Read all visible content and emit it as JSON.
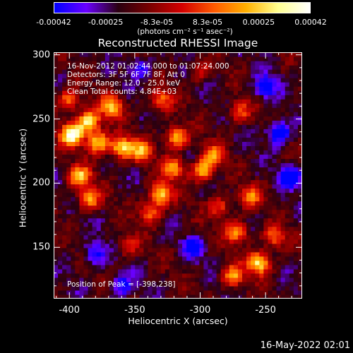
{
  "colorbar": {
    "ticks": [
      "-0.00042",
      "-0.00025",
      "-8.3e-05",
      "8.3e-05",
      "0.00025",
      "0.00042"
    ],
    "tick_values": [
      -0.00042,
      -0.00025,
      -8.3e-05,
      8.3e-05,
      0.00025,
      0.00042
    ],
    "units": "(photons cm⁻² s⁻¹ asec⁻²)",
    "colors": [
      "#0000ff",
      "#6a00ff",
      "#2a0010",
      "#7a0000",
      "#d40000",
      "#ff5a00",
      "#ffb000",
      "#ffff90",
      "#ffffff"
    ]
  },
  "info_lines": [
    "16-Nov-2012 01:02:44.000 to 01:07:24.000",
    "Detectors: 3F 5F 6F 7F 8F, Att 0",
    "Energy Range: 12.0 - 25.0 keV",
    "Clean    Total counts: 4.84E+03"
  ],
  "peak_label": "Position of Peak = [-398,238]",
  "footer_date": "16-May-2022 02:01",
  "chart_data": {
    "type": "heatmap",
    "title": "Reconstructed RHESSI Image",
    "xlabel": "Heliocentric X (arcsec)",
    "ylabel": "Heliocentric Y (arcsec)",
    "xlim": [
      -412,
      -222
    ],
    "ylim": [
      110,
      302
    ],
    "xticks": [
      -400,
      -350,
      -300,
      -250
    ],
    "xtick_labels": [
      "-400",
      "-350",
      "-300",
      "-250"
    ],
    "yticks": [
      150,
      200,
      250,
      300
    ],
    "ytick_labels": [
      "150",
      "200",
      "250",
      "300"
    ],
    "peak_position": [
      -398,
      238
    ],
    "bright_sources": [
      {
        "x": -398,
        "y": 238,
        "intensity": 1.0
      },
      {
        "x": -385,
        "y": 248,
        "intensity": 0.85
      },
      {
        "x": -368,
        "y": 260,
        "intensity": 0.7
      },
      {
        "x": -378,
        "y": 232,
        "intensity": 0.75
      },
      {
        "x": -360,
        "y": 228,
        "intensity": 0.8
      },
      {
        "x": -345,
        "y": 225,
        "intensity": 0.6
      },
      {
        "x": -392,
        "y": 205,
        "intensity": 0.7
      },
      {
        "x": -385,
        "y": 188,
        "intensity": 0.6
      },
      {
        "x": -400,
        "y": 265,
        "intensity": 0.55
      },
      {
        "x": -330,
        "y": 265,
        "intensity": 0.5
      },
      {
        "x": -318,
        "y": 236,
        "intensity": 0.7
      },
      {
        "x": -320,
        "y": 212,
        "intensity": 0.6
      },
      {
        "x": -330,
        "y": 192,
        "intensity": 0.75
      },
      {
        "x": -338,
        "y": 178,
        "intensity": 0.55
      },
      {
        "x": -298,
        "y": 210,
        "intensity": 0.7
      },
      {
        "x": -290,
        "y": 222,
        "intensity": 0.55
      },
      {
        "x": -285,
        "y": 182,
        "intensity": 0.45
      },
      {
        "x": -270,
        "y": 256,
        "intensity": 0.45
      },
      {
        "x": -272,
        "y": 162,
        "intensity": 0.65
      },
      {
        "x": -262,
        "y": 190,
        "intensity": 0.5
      },
      {
        "x": -255,
        "y": 138,
        "intensity": 0.85
      },
      {
        "x": -275,
        "y": 128,
        "intensity": 0.6
      },
      {
        "x": -243,
        "y": 158,
        "intensity": 0.5
      },
      {
        "x": -355,
        "y": 152,
        "intensity": 0.35
      },
      {
        "x": -300,
        "y": 288,
        "intensity": 0.3
      }
    ],
    "dim_regions": [
      {
        "x": -240,
        "y": 240,
        "intensity": -0.6
      },
      {
        "x": -250,
        "y": 275,
        "intensity": -0.5
      },
      {
        "x": -380,
        "y": 145,
        "intensity": -0.45
      },
      {
        "x": -360,
        "y": 120,
        "intensity": -0.4
      },
      {
        "x": -230,
        "y": 205,
        "intensity": -0.55
      },
      {
        "x": -345,
        "y": 290,
        "intensity": -0.35
      },
      {
        "x": -305,
        "y": 150,
        "intensity": -0.4
      }
    ],
    "grid": false
  }
}
